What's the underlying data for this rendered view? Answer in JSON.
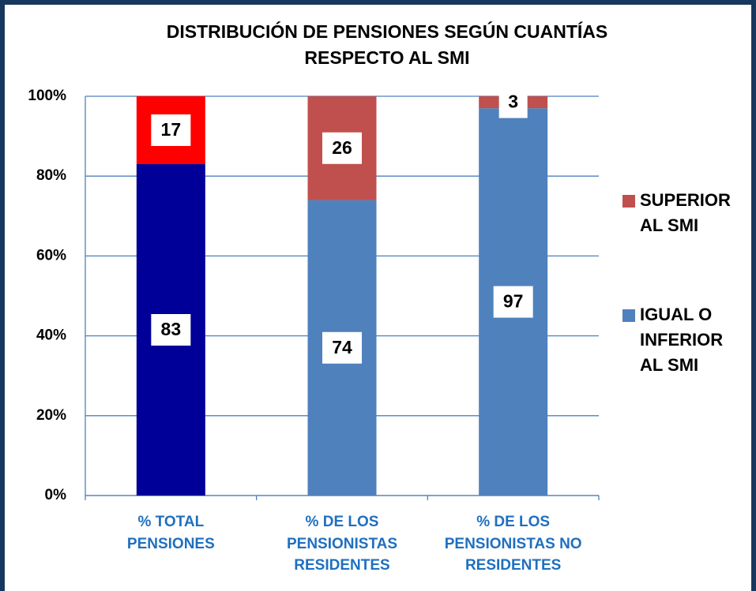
{
  "chart_data": {
    "type": "stacked_bar",
    "title": "DISTRIBUCIÓN DE PENSIONES SEGÚN CUANTÍAS RESPECTO AL SMI",
    "categories": [
      "% TOTAL PENSIONES",
      "% DE LOS PENSIONISTAS RESIDENTES",
      "% DE LOS PENSIONISTAS NO RESIDENTES"
    ],
    "series": [
      {
        "name": "IGUAL O INFERIOR AL SMI",
        "color": "#4f81bd",
        "point_colors": [
          "#000099",
          "#4f81bd",
          "#4f81bd"
        ],
        "values": [
          83,
          74,
          97
        ]
      },
      {
        "name": "SUPERIOR AL SMI",
        "color": "#c0504d",
        "point_colors": [
          "#ff0000",
          "#c0504d",
          "#c0504d"
        ],
        "values": [
          17,
          26,
          3
        ]
      }
    ],
    "ylim": [
      0,
      100
    ],
    "yticks": [
      {
        "value": 0,
        "label": "0%"
      },
      {
        "value": 20,
        "label": "20%"
      },
      {
        "value": 40,
        "label": "40%"
      },
      {
        "value": 60,
        "label": "60%"
      },
      {
        "value": 80,
        "label": "80%"
      },
      {
        "value": 100,
        "label": "100%"
      }
    ],
    "grid": true,
    "legend": "right"
  }
}
